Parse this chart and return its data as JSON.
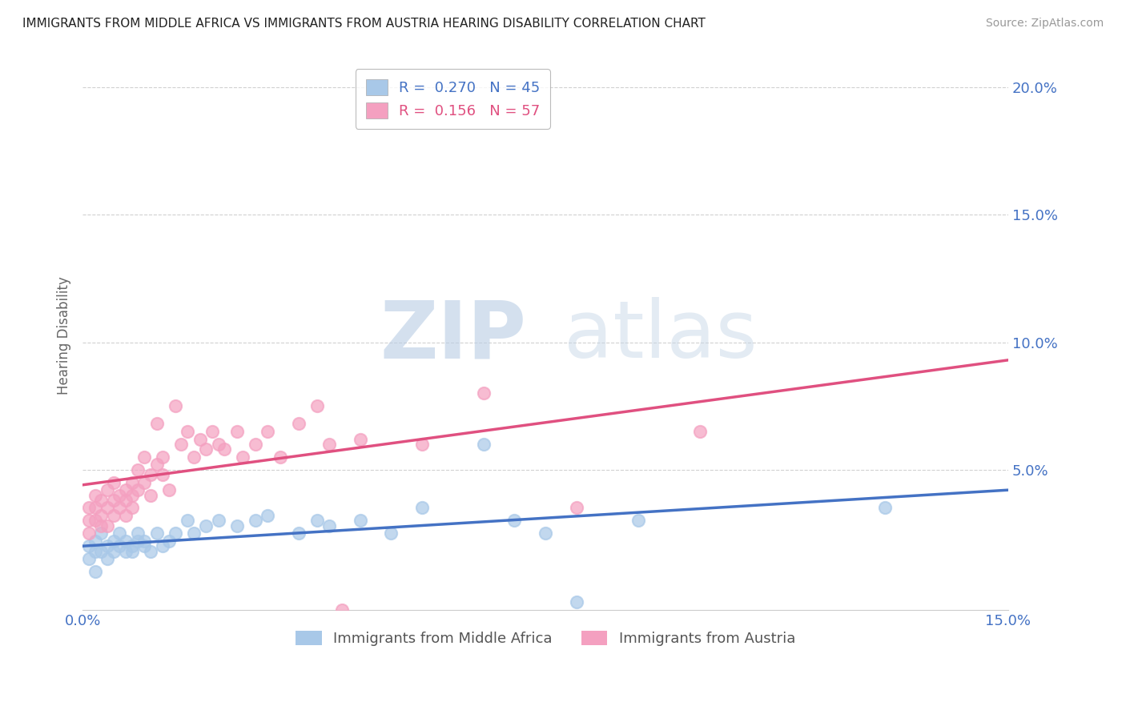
{
  "title": "IMMIGRANTS FROM MIDDLE AFRICA VS IMMIGRANTS FROM AUSTRIA HEARING DISABILITY CORRELATION CHART",
  "source": "Source: ZipAtlas.com",
  "ylabel": "Hearing Disability",
  "legend_label_blue": "Immigrants from Middle Africa",
  "legend_label_pink": "Immigrants from Austria",
  "R_blue": 0.27,
  "N_blue": 45,
  "R_pink": 0.156,
  "N_pink": 57,
  "xlim": [
    0.0,
    0.15
  ],
  "ylim": [
    -0.005,
    0.21
  ],
  "xticks": [
    0.0,
    0.15
  ],
  "yticks": [
    0.05,
    0.1,
    0.15,
    0.2
  ],
  "color_blue": "#a8c8e8",
  "color_pink": "#f4a0c0",
  "color_trendline_blue": "#4472c4",
  "color_trendline_pink": "#e05080",
  "color_axis_labels": "#4472c4",
  "blue_scatter_x": [
    0.001,
    0.001,
    0.002,
    0.002,
    0.002,
    0.003,
    0.003,
    0.004,
    0.004,
    0.005,
    0.005,
    0.006,
    0.006,
    0.007,
    0.007,
    0.008,
    0.008,
    0.009,
    0.009,
    0.01,
    0.01,
    0.011,
    0.012,
    0.013,
    0.014,
    0.015,
    0.017,
    0.018,
    0.02,
    0.022,
    0.025,
    0.028,
    0.03,
    0.035,
    0.038,
    0.04,
    0.045,
    0.05,
    0.055,
    0.065,
    0.07,
    0.075,
    0.08,
    0.09,
    0.13
  ],
  "blue_scatter_y": [
    0.02,
    0.015,
    0.018,
    0.022,
    0.01,
    0.025,
    0.018,
    0.02,
    0.015,
    0.022,
    0.018,
    0.02,
    0.025,
    0.018,
    0.022,
    0.02,
    0.018,
    0.022,
    0.025,
    0.02,
    0.022,
    0.018,
    0.025,
    0.02,
    0.022,
    0.025,
    0.03,
    0.025,
    0.028,
    0.03,
    0.028,
    0.03,
    0.032,
    0.025,
    0.03,
    0.028,
    0.03,
    0.025,
    0.035,
    0.06,
    0.03,
    0.025,
    -0.002,
    0.03,
    0.035
  ],
  "pink_scatter_x": [
    0.001,
    0.001,
    0.001,
    0.002,
    0.002,
    0.002,
    0.003,
    0.003,
    0.003,
    0.004,
    0.004,
    0.004,
    0.005,
    0.005,
    0.005,
    0.006,
    0.006,
    0.007,
    0.007,
    0.007,
    0.008,
    0.008,
    0.008,
    0.009,
    0.009,
    0.01,
    0.01,
    0.011,
    0.011,
    0.012,
    0.012,
    0.013,
    0.013,
    0.014,
    0.015,
    0.016,
    0.017,
    0.018,
    0.019,
    0.02,
    0.021,
    0.022,
    0.023,
    0.025,
    0.026,
    0.028,
    0.03,
    0.032,
    0.035,
    0.038,
    0.04,
    0.042,
    0.045,
    0.055,
    0.065,
    0.08,
    0.1
  ],
  "pink_scatter_y": [
    0.03,
    0.035,
    0.025,
    0.04,
    0.035,
    0.03,
    0.038,
    0.032,
    0.028,
    0.035,
    0.042,
    0.028,
    0.038,
    0.032,
    0.045,
    0.04,
    0.035,
    0.042,
    0.038,
    0.032,
    0.045,
    0.04,
    0.035,
    0.042,
    0.05,
    0.045,
    0.055,
    0.048,
    0.04,
    0.052,
    0.068,
    0.055,
    0.048,
    0.042,
    0.075,
    0.06,
    0.065,
    0.055,
    0.062,
    0.058,
    0.065,
    0.06,
    0.058,
    0.065,
    0.055,
    0.06,
    0.065,
    0.055,
    0.068,
    0.075,
    0.06,
    -0.005,
    0.062,
    0.06,
    0.08,
    0.035,
    0.065
  ],
  "trendline_blue_y0": 0.02,
  "trendline_blue_y1": 0.042,
  "trendline_pink_y0": 0.044,
  "trendline_pink_y1": 0.093,
  "watermark_zip": "ZIP",
  "watermark_atlas": "atlas",
  "background_color": "#ffffff"
}
